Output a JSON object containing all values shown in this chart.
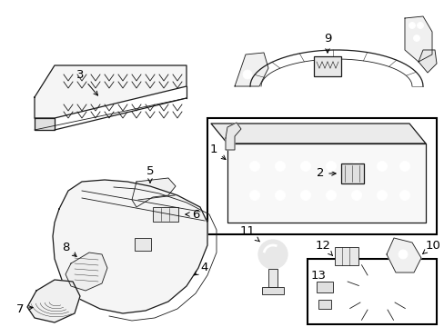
{
  "bg_color": "#ffffff",
  "fig_width": 4.89,
  "fig_height": 3.6,
  "dpi": 100,
  "lc": "#1a1a1a",
  "lw_main": 0.9,
  "lw_thin": 0.6,
  "font_size": 9.5
}
